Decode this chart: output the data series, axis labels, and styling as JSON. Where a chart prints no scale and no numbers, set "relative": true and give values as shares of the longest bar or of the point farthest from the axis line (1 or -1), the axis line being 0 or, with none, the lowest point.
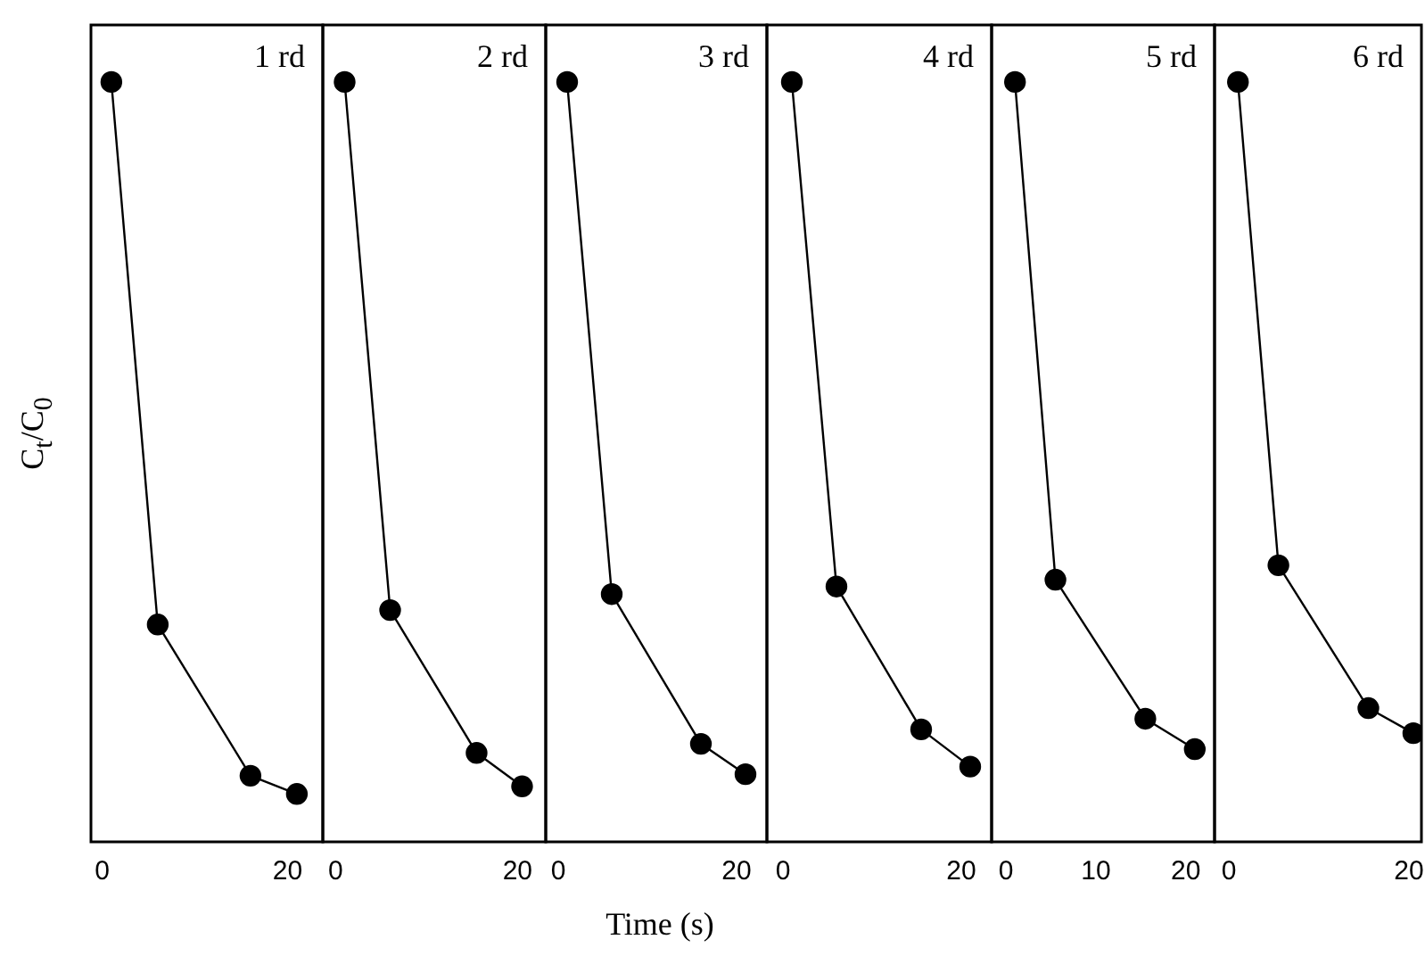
{
  "chart_data": [
    {
      "type": "line",
      "relative": true,
      "ylabel": "C$_{t}$/C$_{0}$",
      "annotations": [
        "1 rd"
      ],
      "x": [
        1,
        6,
        16,
        21
      ],
      "xlim": [
        -1.2,
        23.8
      ],
      "xticks": [
        0,
        20
      ],
      "grid": false,
      "legend": false,
      "marker": "circle",
      "line_style": "solid",
      "series": [
        {
          "color": "#000000",
          "values": [
            1,
            0.286,
            0.087,
            0.063
          ]
        }
      ]
    },
    {
      "type": "line",
      "relative": true,
      "annotations": [
        "2 rd"
      ],
      "x": [
        1,
        6,
        15.5,
        20.5
      ],
      "xlim": [
        -1.4,
        23.1
      ],
      "xticks": [
        0,
        20
      ],
      "grid": false,
      "legend": false,
      "marker": "circle",
      "line_style": "solid",
      "series": [
        {
          "color": "#000000",
          "values": [
            1,
            0.305,
            0.117,
            0.073
          ]
        }
      ]
    },
    {
      "type": "line",
      "relative": true,
      "xlabel": "Time (s)",
      "annotations": [
        "3 rd"
      ],
      "x": [
        1,
        6,
        16,
        21
      ],
      "xlim": [
        -1.4,
        23.4
      ],
      "xticks": [
        0,
        20
      ],
      "grid": false,
      "legend": false,
      "marker": "circle",
      "line_style": "solid",
      "series": [
        {
          "color": "#000000",
          "values": [
            1,
            0.326,
            0.129,
            0.089
          ]
        }
      ]
    },
    {
      "type": "line",
      "relative": true,
      "annotations": [
        "4 rd"
      ],
      "x": [
        1,
        6,
        15.5,
        21
      ],
      "xlim": [
        -1.8,
        23.4
      ],
      "xticks": [
        0,
        20
      ],
      "grid": false,
      "legend": false,
      "marker": "circle",
      "line_style": "solid",
      "series": [
        {
          "color": "#000000",
          "values": [
            1,
            0.336,
            0.148,
            0.099
          ]
        }
      ]
    },
    {
      "type": "line",
      "relative": true,
      "annotations": [
        "5 rd"
      ],
      "x": [
        1,
        5.5,
        15.5,
        21
      ],
      "xlim": [
        -1.6,
        23.2
      ],
      "xticks": [
        0,
        10,
        20
      ],
      "grid": false,
      "legend": false,
      "marker": "circle",
      "line_style": "solid",
      "series": [
        {
          "color": "#000000",
          "values": [
            1,
            0.345,
            0.162,
            0.122
          ]
        }
      ]
    },
    {
      "type": "line",
      "relative": true,
      "annotations": [
        "6 rd"
      ],
      "x": [
        1,
        5.5,
        15.5,
        20.5
      ],
      "xlim": [
        -1.6,
        21.4
      ],
      "xticks": [
        0,
        20
      ],
      "grid": false,
      "legend": false,
      "marker": "circle",
      "line_style": "solid",
      "series": [
        {
          "color": "#000000",
          "values": [
            1,
            0.364,
            0.176,
            0.143
          ]
        }
      ]
    }
  ]
}
